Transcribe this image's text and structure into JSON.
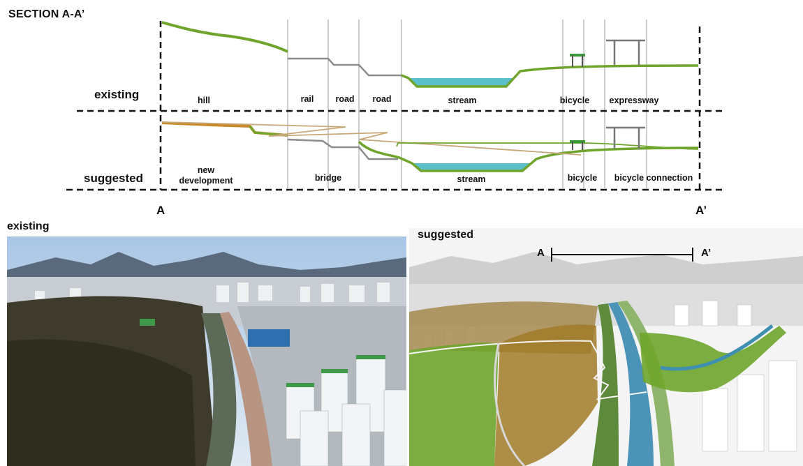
{
  "title": "SECTION A-A’",
  "rows": {
    "existing_label": "existing",
    "suggested_label": "suggested"
  },
  "existing_segments": [
    "hill",
    "rail",
    "road",
    "road",
    "stream",
    "bicycle",
    "expressway"
  ],
  "suggested_segments": {
    "new_development_line1": "new",
    "new_development_line2": "development",
    "bridge": "bridge",
    "stream": "stream",
    "bicycle": "bicycle",
    "bicycle_connection": "bicycle connection"
  },
  "markers": {
    "start": "A",
    "end": "A’"
  },
  "photos": {
    "existing_label": "existing",
    "suggested_label": "suggested",
    "scale_start": "A",
    "scale_end": "A’"
  },
  "colors": {
    "green": "#6fa52c",
    "grey": "#8c8c8c",
    "stream": "#5bbfc9",
    "orange": "#c98a2c",
    "tan": "#c8a878"
  }
}
